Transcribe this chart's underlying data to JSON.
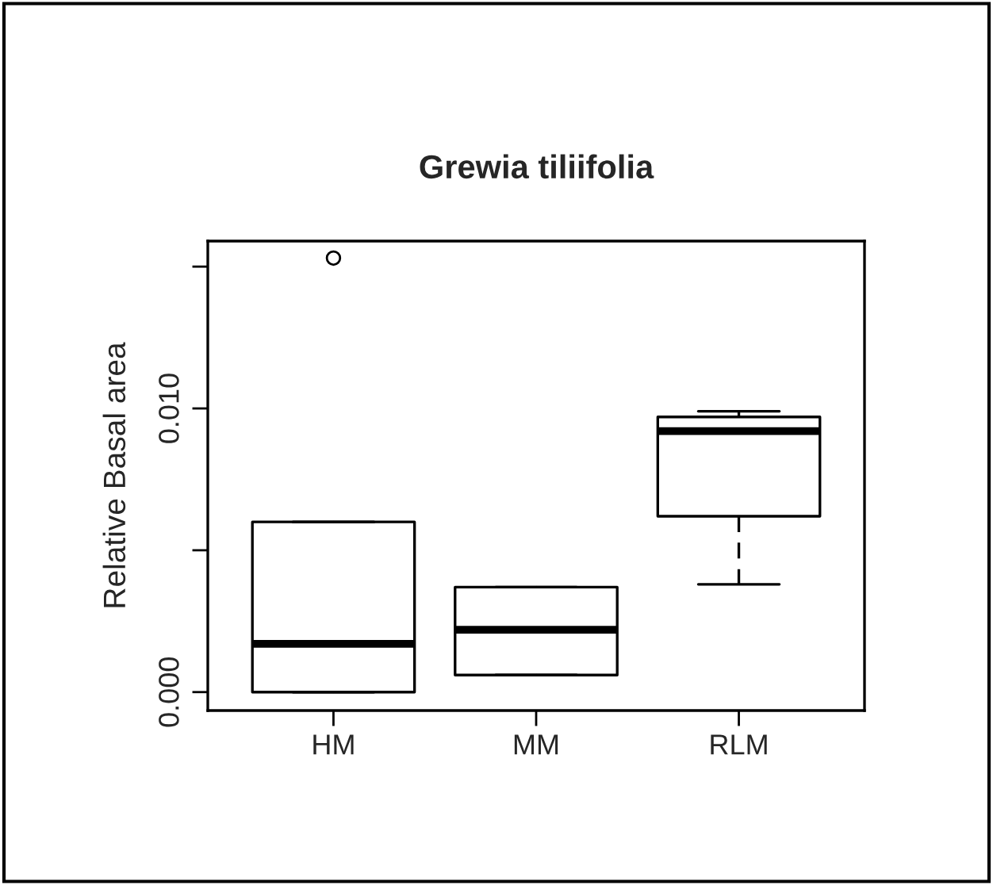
{
  "chart_data": {
    "type": "box",
    "title": "Grewia tiliifolia",
    "ylabel": "Relative Basal area",
    "categories": [
      "HM",
      "MM",
      "RLM"
    ],
    "boxes": [
      {
        "low": 0,
        "q1": 0,
        "median": 0.0017,
        "q3": 0.006,
        "high": 0.006,
        "outliers": [
          0.0153
        ]
      },
      {
        "low": 0.0006,
        "q1": 0.0006,
        "median": 0.0022,
        "q3": 0.0037,
        "high": 0.0037
      },
      {
        "low": 0.0038,
        "q1": 0.0062,
        "median": 0.0092,
        "q3": 0.0097,
        "high": 0.0099
      }
    ],
    "ylim": [
      -0.00065,
      0.0159
    ],
    "yticks": [
      {
        "value": 0,
        "label": "0.000"
      },
      {
        "value": 0.005,
        "label": null
      },
      {
        "value": 0.01,
        "label": "0.010"
      },
      {
        "value": 0.015,
        "label": null
      }
    ],
    "grid": false,
    "legend": false
  }
}
